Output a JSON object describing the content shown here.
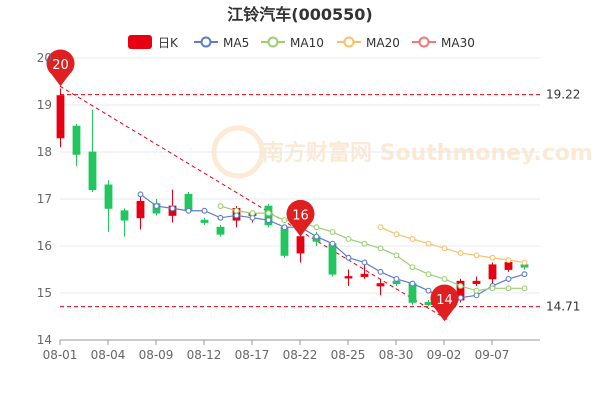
{
  "chart_data": {
    "type": "candlestick",
    "title": "江铃汽车(000550)",
    "legend": {
      "placement": "top-center",
      "items": [
        {
          "key": "k",
          "label": "日K",
          "color": "#e60012"
        },
        {
          "key": "ma5",
          "label": "MA5",
          "color": "#5d7cc9"
        },
        {
          "key": "ma10",
          "label": "MA10",
          "color": "#9ad072"
        },
        {
          "key": "ma20",
          "label": "MA20",
          "color": "#f5c16b"
        },
        {
          "key": "ma30",
          "label": "MA30",
          "color": "#f07878"
        }
      ]
    },
    "ylim": [
      14,
      20
    ],
    "yticks": [
      14,
      15,
      16,
      17,
      18,
      19,
      20
    ],
    "grid": true,
    "watermark": "南方财富网 Southmoney.com",
    "colors": {
      "up": "#e60012",
      "down": "#23c55e",
      "grid": "#e6e9ef",
      "axis": "#666666",
      "refline": "#e60012"
    },
    "dates": [
      "08-01",
      "08-02",
      "08-03",
      "08-04",
      "08-05",
      "08-08",
      "08-09",
      "08-10",
      "08-11",
      "08-12",
      "08-15",
      "08-16",
      "08-17",
      "08-18",
      "08-19",
      "08-22",
      "08-23",
      "08-24",
      "08-25",
      "08-26",
      "08-29",
      "08-30",
      "08-31",
      "09-01",
      "09-02",
      "09-05",
      "09-06",
      "09-07",
      "09-08",
      "09-09"
    ],
    "xtick_labels": [
      "08-01",
      "08-04",
      "08-09",
      "08-12",
      "08-17",
      "08-22",
      "08-25",
      "08-30",
      "09-02",
      "09-07"
    ],
    "candles": [
      {
        "o": 18.3,
        "c": 19.2,
        "h": 19.35,
        "l": 18.1
      },
      {
        "o": 18.55,
        "c": 17.95,
        "h": 18.6,
        "l": 17.7
      },
      {
        "o": 18.0,
        "c": 17.2,
        "h": 18.9,
        "l": 17.15
      },
      {
        "o": 17.3,
        "c": 16.8,
        "h": 17.4,
        "l": 16.3
      },
      {
        "o": 16.75,
        "c": 16.55,
        "h": 16.8,
        "l": 16.2
      },
      {
        "o": 16.6,
        "c": 16.95,
        "h": 17.15,
        "l": 16.35
      },
      {
        "o": 16.9,
        "c": 16.7,
        "h": 17.0,
        "l": 16.65
      },
      {
        "o": 16.65,
        "c": 16.85,
        "h": 17.2,
        "l": 16.5
      },
      {
        "o": 17.1,
        "c": 16.75,
        "h": 17.15,
        "l": 16.7
      },
      {
        "o": 16.55,
        "c": 16.5,
        "h": 16.6,
        "l": 16.45
      },
      {
        "o": 16.4,
        "c": 16.25,
        "h": 16.45,
        "l": 16.2
      },
      {
        "o": 16.55,
        "c": 16.8,
        "h": 16.85,
        "l": 16.4
      },
      {
        "o": 16.65,
        "c": 16.7,
        "h": 16.75,
        "l": 16.5
      },
      {
        "o": 16.85,
        "c": 16.45,
        "h": 16.9,
        "l": 16.4
      },
      {
        "o": 16.4,
        "c": 15.8,
        "h": 16.45,
        "l": 15.75
      },
      {
        "o": 15.85,
        "c": 16.2,
        "h": 16.3,
        "l": 15.65
      },
      {
        "o": 16.2,
        "c": 16.1,
        "h": 16.3,
        "l": 16.0
      },
      {
        "o": 16.05,
        "c": 15.4,
        "h": 16.1,
        "l": 15.35
      },
      {
        "o": 15.35,
        "c": 15.35,
        "h": 15.5,
        "l": 15.15
      },
      {
        "o": 15.35,
        "c": 15.4,
        "h": 15.65,
        "l": 15.3
      },
      {
        "o": 15.15,
        "c": 15.2,
        "h": 15.3,
        "l": 14.95
      },
      {
        "o": 15.25,
        "c": 15.2,
        "h": 15.35,
        "l": 15.15
      },
      {
        "o": 15.2,
        "c": 14.8,
        "h": 15.25,
        "l": 14.75
      },
      {
        "o": 14.8,
        "c": 14.75,
        "h": 14.85,
        "l": 14.72
      },
      {
        "o": 14.78,
        "c": 14.8,
        "h": 14.95,
        "l": 14.7
      },
      {
        "o": 14.85,
        "c": 15.25,
        "h": 15.3,
        "l": 14.8
      },
      {
        "o": 15.2,
        "c": 15.25,
        "h": 15.35,
        "l": 15.15
      },
      {
        "o": 15.3,
        "c": 15.6,
        "h": 15.65,
        "l": 15.1
      },
      {
        "o": 15.5,
        "c": 15.65,
        "h": 15.7,
        "l": 15.45
      },
      {
        "o": 15.6,
        "c": 15.55,
        "h": 15.7,
        "l": 15.5
      }
    ],
    "ma5": [
      null,
      null,
      null,
      null,
      null,
      17.1,
      16.85,
      16.8,
      16.75,
      16.75,
      16.6,
      16.65,
      16.6,
      16.55,
      16.4,
      16.4,
      16.2,
      16.05,
      15.75,
      15.65,
      15.45,
      15.3,
      15.2,
      15.05,
      14.85,
      14.9,
      14.95,
      15.15,
      15.3,
      15.4
    ],
    "ma10": [
      null,
      null,
      null,
      null,
      null,
      null,
      null,
      null,
      null,
      null,
      16.85,
      16.75,
      16.7,
      16.7,
      16.55,
      16.5,
      16.4,
      16.3,
      16.15,
      16.05,
      15.95,
      15.8,
      15.55,
      15.4,
      15.3,
      15.15,
      15.05,
      15.1,
      15.1,
      15.1
    ],
    "ma20": [
      null,
      null,
      null,
      null,
      null,
      null,
      null,
      null,
      null,
      null,
      null,
      null,
      null,
      null,
      null,
      null,
      null,
      null,
      null,
      null,
      16.4,
      16.25,
      16.15,
      16.05,
      15.95,
      15.85,
      15.8,
      15.75,
      15.7,
      15.65
    ],
    "annotations": {
      "high_marker": {
        "label": "20",
        "index": 0,
        "value": 19.4
      },
      "mid_marker": {
        "label": "16",
        "index": 15,
        "value": 16.2
      },
      "low_marker": {
        "label": "14",
        "index": 24,
        "value": 14.4
      },
      "ref_high": {
        "label": "19.22",
        "value": 19.22
      },
      "ref_low": {
        "label": "14.71",
        "value": 14.71
      }
    }
  }
}
